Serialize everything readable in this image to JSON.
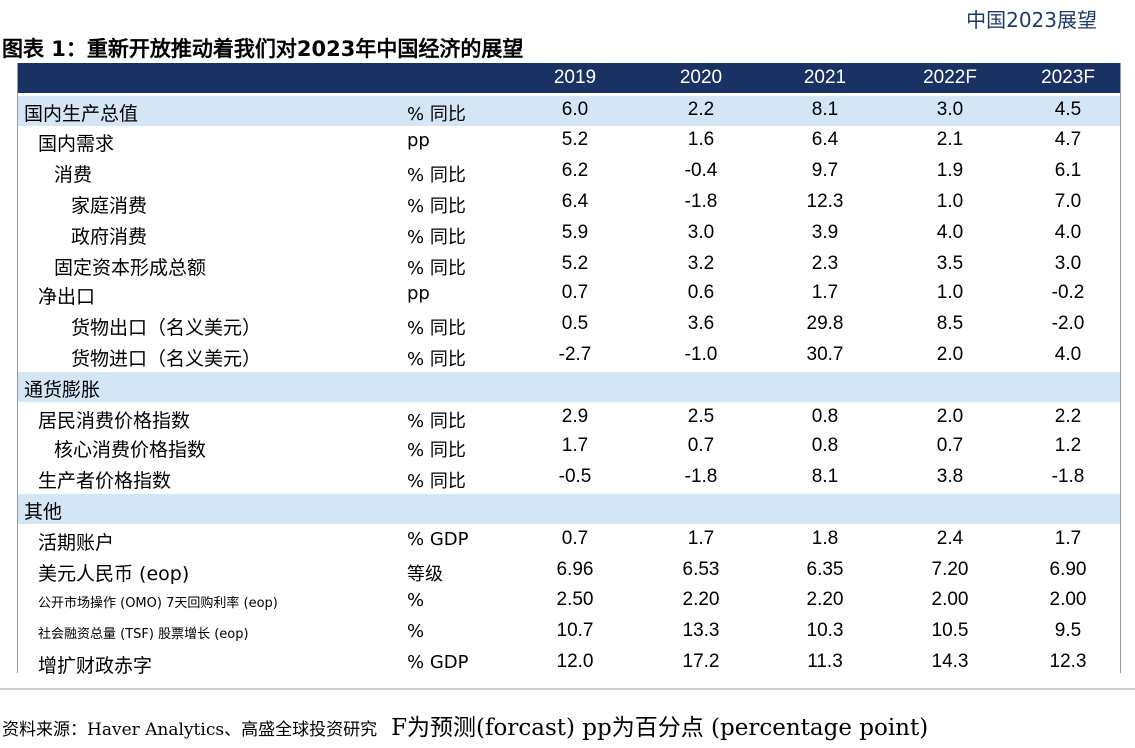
{
  "doc_header": "中国2023展望",
  "title": "图表 1：重新开放推动着我们对2023年中国经济的展望",
  "columns": [
    "2019",
    "2020",
    "2021",
    "2022F",
    "2023F"
  ],
  "rows": [
    {
      "label": "国内生产总值",
      "indent": 0,
      "unit": "% 同比",
      "values": [
        "6.0",
        "2.2",
        "8.1",
        "3.0",
        "4.5"
      ],
      "section": true
    },
    {
      "label": "国内需求",
      "indent": 1,
      "unit": "pp",
      "values": [
        "5.2",
        "1.6",
        "6.4",
        "2.1",
        "4.7"
      ]
    },
    {
      "label": "消费",
      "indent": 2,
      "unit": "% 同比",
      "values": [
        "6.2",
        "-0.4",
        "9.7",
        "1.9",
        "6.1"
      ]
    },
    {
      "label": "家庭消费",
      "indent": 3,
      "unit": "% 同比",
      "values": [
        "6.4",
        "-1.8",
        "12.3",
        "1.0",
        "7.0"
      ]
    },
    {
      "label": "政府消费",
      "indent": 3,
      "unit": "% 同比",
      "values": [
        "5.9",
        "3.0",
        "3.9",
        "4.0",
        "4.0"
      ]
    },
    {
      "label": "固定资本形成总额",
      "indent": 2,
      "unit": "% 同比",
      "values": [
        "5.2",
        "3.2",
        "2.3",
        "3.5",
        "3.0"
      ]
    },
    {
      "label": "净出口",
      "indent": 1,
      "unit": "pp",
      "values": [
        "0.7",
        "0.6",
        "1.7",
        "1.0",
        "-0.2"
      ]
    },
    {
      "label": "货物出口（名义美元）",
      "indent": 3,
      "unit": "% 同比",
      "values": [
        "0.5",
        "3.6",
        "29.8",
        "8.5",
        "-2.0"
      ]
    },
    {
      "label": "货物进口（名义美元）",
      "indent": 3,
      "unit": "% 同比",
      "values": [
        "-2.7",
        "-1.0",
        "30.7",
        "2.0",
        "4.0"
      ]
    },
    {
      "label": "通货膨胀",
      "indent": 0,
      "unit": "",
      "values": [
        "",
        "",
        "",
        "",
        ""
      ],
      "section": true
    },
    {
      "label": "居民消费价格指数",
      "indent": 1,
      "unit": "% 同比",
      "values": [
        "2.9",
        "2.5",
        "0.8",
        "2.0",
        "2.2"
      ]
    },
    {
      "label": "核心消费价格指数",
      "indent": 2,
      "unit": "% 同比",
      "values": [
        "1.7",
        "0.7",
        "0.8",
        "0.7",
        "1.2"
      ]
    },
    {
      "label": "生产者价格指数",
      "indent": 1,
      "unit": "% 同比",
      "values": [
        "-0.5",
        "-1.8",
        "8.1",
        "3.8",
        "-1.8"
      ]
    },
    {
      "label": "其他",
      "indent": 0,
      "unit": "",
      "values": [
        "",
        "",
        "",
        "",
        ""
      ],
      "section": true
    },
    {
      "label": "活期账户",
      "indent": 1,
      "unit": "% GDP",
      "values": [
        "0.7",
        "1.7",
        "1.8",
        "2.4",
        "1.7"
      ]
    },
    {
      "label": "美元人民币 (eop)",
      "indent": 1,
      "unit": "等级",
      "values": [
        "6.96",
        "6.53",
        "6.35",
        "7.20",
        "6.90"
      ]
    },
    {
      "label": "公开市场操作 (OMO) 7天回购利率 (eop)",
      "indent": 1,
      "unit": "%",
      "values": [
        "2.50",
        "2.20",
        "2.20",
        "2.00",
        "2.00"
      ],
      "small": true
    },
    {
      "label": "社会融资总量 (TSF) 股票增长 (eop)",
      "indent": 1,
      "unit": "%",
      "values": [
        "10.7",
        "13.3",
        "10.3",
        "10.5",
        "9.5"
      ],
      "small": true
    },
    {
      "label": "增扩财政赤字",
      "indent": 1,
      "unit": "% GDP",
      "values": [
        "12.0",
        "17.2",
        "11.3",
        "14.3",
        "12.3"
      ]
    }
  ],
  "source": "资料来源：Haver Analytics、高盛全球投资研究",
  "footnote": "F为预测(forcast) pp为百分点 (percentage point)"
}
